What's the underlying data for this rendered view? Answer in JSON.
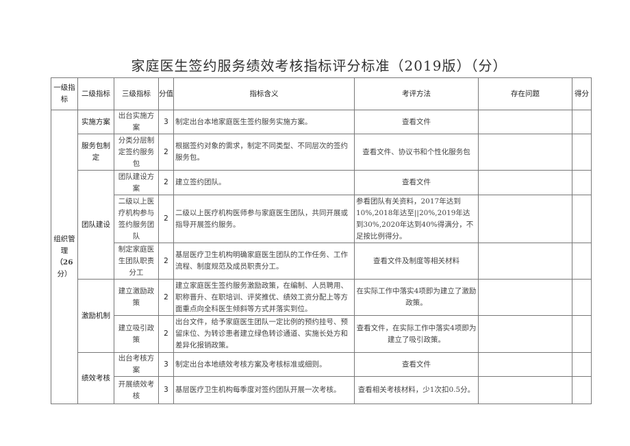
{
  "title": "家庭医生签约服务绩效考核指标评分标准（2019版）（分）",
  "headers": [
    "一级指标",
    "二级指标",
    "三级指标",
    "分值",
    "指标含义",
    "考评方法",
    "存在问题",
    "得分"
  ],
  "level1": {
    "label": "组织管理",
    "score": "（26",
    "score_unit": "分）"
  },
  "groups": [
    "实施方案",
    "服务包制定",
    "团队建设",
    "激励机制",
    "绩效考核"
  ],
  "rows": [
    {
      "level3": "出台实施方案",
      "score": "3",
      "meaning": "制定出台本地家庭医生签约服务实施方案。",
      "method": "查看文件",
      "issues": "",
      "points": ""
    },
    {
      "level3": "分类分层制定签约服务包",
      "score": "2",
      "meaning": "根据签约对象的需求，制定不同类型、不同层次的签约服务包。",
      "method": "查看文件、协议书和个性化服务包",
      "issues": "",
      "points": ""
    },
    {
      "level3": "团队建设方案",
      "score": "2",
      "meaning": "建立签约团队。",
      "method": "查看文件",
      "issues": "",
      "points": ""
    },
    {
      "level3": "二级以上医疗机构参与签约服务团队",
      "score": "2",
      "meaning": "二级以上医疗机构医师参与家庭医生团队，共同开展或指导开展签约服务。",
      "method": "参看团队有关资料，2017年达到10%,2018年达至||20%,2019年达到30%,2020年达到40%得满分，不足按比例得分。",
      "issues": "",
      "points": ""
    },
    {
      "level3": "制定家庭医生团队职责分工",
      "score": "2",
      "meaning": "基层医疗卫生机构明确家庭医生团队的工作任务、工作流程、制度规范及成员职责分工。",
      "method": "查看文件及制度等相关材料",
      "issues": "",
      "points": ""
    },
    {
      "level3": "建立激励政策",
      "score": "2",
      "meaning": "建立家庭医生签约服务激励政策，在编制、人员聘用、职称晋升、在职培训、评奖推优、绩效工资分配上等方面重点向全科医生倾斜等方式并落实到位。",
      "method": "在实际工作中落实4项即为建立了激励政策。",
      "issues": "",
      "points": ""
    },
    {
      "level3": "建立吸引政策",
      "score": "2",
      "meaning": "出台文件，给予家庭医生团队一定比例的预约挂号、预留床位、为转诊患者建立绿色转诊通道、实施长处方和差异化报销政策。",
      "method": "查看文件，在实际工作中落实4项即为建立了吸引政策。",
      "issues": "",
      "points": ""
    },
    {
      "level3": "出台考核方案",
      "score": "3",
      "meaning": "制定出台本地绩效考核方案及考核标准或细则。",
      "method": "查看文件",
      "issues": "",
      "points": ""
    },
    {
      "level3": "开展绩效考核",
      "score": "3",
      "meaning": "基层医疗卫生机构每季度对签约团队开展一次考核。",
      "method": "查看相关考核材料，少1次扣0.5分。",
      "issues": "",
      "points": ""
    }
  ]
}
